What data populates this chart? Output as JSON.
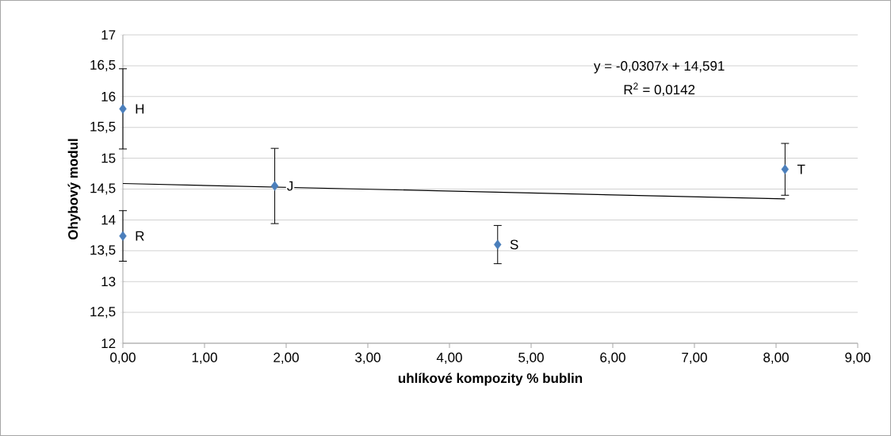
{
  "chart_data": {
    "type": "scatter",
    "xlabel": "uhlíkové kompozity % bublin",
    "ylabel": "Ohybový modul",
    "xlim": [
      0,
      9
    ],
    "ylim": [
      12,
      17
    ],
    "xticks": [
      {
        "value": 0,
        "label": "0,00"
      },
      {
        "value": 1,
        "label": "1,00"
      },
      {
        "value": 2,
        "label": "2,00"
      },
      {
        "value": 3,
        "label": "3,00"
      },
      {
        "value": 4,
        "label": "4,00"
      },
      {
        "value": 5,
        "label": "5,00"
      },
      {
        "value": 6,
        "label": "6,00"
      },
      {
        "value": 7,
        "label": "7,00"
      },
      {
        "value": 8,
        "label": "8,00"
      },
      {
        "value": 9,
        "label": "9,00"
      }
    ],
    "yticks": [
      12,
      {
        "value": 12.5,
        "label": "12,5"
      },
      13,
      {
        "value": 13.5,
        "label": "13,5"
      },
      14,
      {
        "value": 14.5,
        "label": "14,5"
      },
      15,
      {
        "value": 15.5,
        "label": "15,5"
      },
      16,
      {
        "value": 16.5,
        "label": "16,5"
      },
      17
    ],
    "grid": "y",
    "series": [
      {
        "color": "#4a7ebb",
        "marker": "diamond",
        "x": [
          0,
          0,
          1.86,
          4.59,
          8.11
        ],
        "values": [
          15.8,
          13.74,
          14.55,
          13.6,
          14.82
        ],
        "errors": [
          0.65,
          0.41,
          0.61,
          0.31,
          0.42
        ],
        "value_labels": [
          "H",
          "R",
          "J",
          "S",
          "T"
        ]
      },
      {
        "type": "line",
        "color": "#000000",
        "line_style": "solid",
        "marker": "none",
        "x": [
          0,
          8.11
        ],
        "values": [
          14.59,
          14.34
        ]
      }
    ],
    "annotations": [
      "y = -0,0307x + 14,591",
      "R$^{2}$ = 0,0142"
    ]
  }
}
